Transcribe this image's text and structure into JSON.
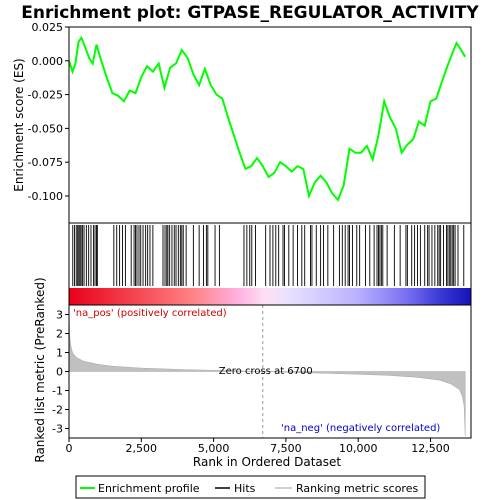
{
  "chart_data": {
    "type": "line",
    "title": "Enrichment plot: GTPASE_REGULATOR_ACTIVITY",
    "top_panel": {
      "ylabel": "Enrichment score (ES)",
      "ylim": [
        -0.12,
        0.025
      ],
      "yticks": [
        0.025,
        0.0,
        -0.025,
        -0.05,
        -0.075,
        -0.1
      ],
      "ytick_labels": [
        "0.025",
        "0.000",
        "-0.025",
        "-0.050",
        "-0.075",
        "-0.100"
      ],
      "series_name": "Enrichment profile",
      "color": "#00ff00",
      "profile": [
        [
          0,
          0.0
        ],
        [
          120,
          -0.008
        ],
        [
          220,
          -0.002
        ],
        [
          330,
          0.014
        ],
        [
          430,
          0.017
        ],
        [
          560,
          0.01
        ],
        [
          700,
          0.002
        ],
        [
          820,
          -0.002
        ],
        [
          950,
          0.012
        ],
        [
          1100,
          0.001
        ],
        [
          1300,
          -0.012
        ],
        [
          1500,
          -0.024
        ],
        [
          1700,
          -0.026
        ],
        [
          1900,
          -0.03
        ],
        [
          2100,
          -0.022
        ],
        [
          2300,
          -0.024
        ],
        [
          2500,
          -0.012
        ],
        [
          2700,
          -0.004
        ],
        [
          2900,
          -0.008
        ],
        [
          3100,
          -0.002
        ],
        [
          3300,
          -0.02
        ],
        [
          3500,
          -0.005
        ],
        [
          3700,
          -0.002
        ],
        [
          3900,
          0.008
        ],
        [
          4100,
          0.002
        ],
        [
          4300,
          -0.01
        ],
        [
          4500,
          -0.018
        ],
        [
          4700,
          -0.006
        ],
        [
          4900,
          -0.018
        ],
        [
          5100,
          -0.025
        ],
        [
          5300,
          -0.028
        ],
        [
          5500,
          -0.042
        ],
        [
          5700,
          -0.055
        ],
        [
          5900,
          -0.068
        ],
        [
          6100,
          -0.08
        ],
        [
          6300,
          -0.078
        ],
        [
          6500,
          -0.072
        ],
        [
          6700,
          -0.078
        ],
        [
          6900,
          -0.086
        ],
        [
          7100,
          -0.083
        ],
        [
          7300,
          -0.075
        ],
        [
          7500,
          -0.078
        ],
        [
          7700,
          -0.082
        ],
        [
          7900,
          -0.078
        ],
        [
          8100,
          -0.08
        ],
        [
          8300,
          -0.1
        ],
        [
          8500,
          -0.09
        ],
        [
          8700,
          -0.085
        ],
        [
          8900,
          -0.09
        ],
        [
          9100,
          -0.098
        ],
        [
          9300,
          -0.103
        ],
        [
          9500,
          -0.092
        ],
        [
          9700,
          -0.065
        ],
        [
          9900,
          -0.068
        ],
        [
          10100,
          -0.068
        ],
        [
          10300,
          -0.063
        ],
        [
          10500,
          -0.073
        ],
        [
          10700,
          -0.055
        ],
        [
          10900,
          -0.03
        ],
        [
          11100,
          -0.042
        ],
        [
          11300,
          -0.05
        ],
        [
          11500,
          -0.068
        ],
        [
          11700,
          -0.062
        ],
        [
          11900,
          -0.058
        ],
        [
          12100,
          -0.045
        ],
        [
          12300,
          -0.048
        ],
        [
          12500,
          -0.03
        ],
        [
          12700,
          -0.028
        ],
        [
          12900,
          -0.015
        ],
        [
          13100,
          -0.003
        ],
        [
          13300,
          0.008
        ],
        [
          13400,
          0.013
        ],
        [
          13500,
          0.01
        ],
        [
          13700,
          0.003
        ]
      ]
    },
    "hits_panel": {
      "series_name": "Hits",
      "hit_positions": [
        130,
        190,
        250,
        300,
        340,
        380,
        420,
        470,
        520,
        600,
        680,
        760,
        850,
        900,
        950,
        980,
        1550,
        1650,
        1750,
        1850,
        1950,
        2150,
        2250,
        2300,
        2350,
        2420,
        2480,
        2560,
        2650,
        2720,
        2800,
        2900,
        3250,
        3320,
        3380,
        3420,
        3480,
        3560,
        3640,
        3700,
        3780,
        3850,
        3900,
        3950,
        4050,
        4300,
        4500,
        4650,
        4750,
        4800,
        5050,
        5200,
        6050,
        6150,
        6250,
        6320,
        6450,
        6800,
        6950,
        7050,
        7150,
        7250,
        7400,
        7450,
        7600,
        7750,
        7900,
        8050,
        8150,
        8350,
        8400,
        8550,
        8700,
        8800,
        8950,
        9150,
        9350,
        9450,
        9550,
        9650,
        9700,
        9800,
        9950,
        10050,
        10250,
        10400,
        10550,
        10650,
        10700,
        10750,
        10800,
        10850,
        11000,
        11250,
        11450,
        11650,
        11700,
        11850,
        11950,
        12050,
        12150,
        12300,
        12400,
        12450,
        12550,
        12650,
        12750,
        12800,
        12850,
        12950,
        13050,
        13100,
        13150,
        13200,
        13250,
        13300,
        13350,
        13450,
        13650
      ],
      "gradient_left_color": "#ff0000",
      "gradient_mid_color": "#ffffff",
      "gradient_right_color": "#0000ff"
    },
    "bottom_panel": {
      "ylabel": "Ranked list metric (PreRanked)",
      "xlabel": "Rank in Ordered Dataset",
      "ylim": [
        -3.5,
        3.5
      ],
      "yticks": [
        3,
        2,
        1,
        0,
        -1,
        -2,
        -3
      ],
      "ytick_labels": [
        "3",
        "2",
        "1",
        "0",
        "-1",
        "-2",
        "-3"
      ],
      "series_name": "Ranking metric scores",
      "fill_color": "#c0c0c0",
      "metric_curve": [
        [
          0,
          3.2
        ],
        [
          20,
          2.0
        ],
        [
          60,
          1.4
        ],
        [
          120,
          1.0
        ],
        [
          250,
          0.75
        ],
        [
          500,
          0.55
        ],
        [
          1000,
          0.38
        ],
        [
          1500,
          0.28
        ],
        [
          2500,
          0.18
        ],
        [
          4000,
          0.1
        ],
        [
          5500,
          0.04
        ],
        [
          6700,
          0.0
        ],
        [
          8000,
          -0.06
        ],
        [
          9500,
          -0.12
        ],
        [
          11000,
          -0.2
        ],
        [
          12000,
          -0.3
        ],
        [
          12800,
          -0.45
        ],
        [
          13200,
          -0.65
        ],
        [
          13500,
          -0.95
        ],
        [
          13600,
          -1.3
        ],
        [
          13660,
          -1.8
        ],
        [
          13700,
          -3.4
        ]
      ],
      "zero_cross_label": "Zero cross at 6700",
      "zero_cross_rank": 6700,
      "pos_label": "'na_pos' (positively correlated)",
      "neg_label": "'na_neg' (negatively correlated)",
      "pos_color": "#cc0000",
      "neg_color": "#0000cc"
    },
    "xlim": [
      0,
      13900
    ],
    "xticks": [
      0,
      2500,
      5000,
      7500,
      10000,
      12500
    ],
    "xtick_labels": [
      "0",
      "2,500",
      "5,000",
      "7,500",
      "10,000",
      "12,500"
    ],
    "legend": {
      "placement": "bottom",
      "entries": [
        {
          "label": "Enrichment profile",
          "color": "#00ff00"
        },
        {
          "label": "Hits",
          "color": "#000000"
        },
        {
          "label": "Ranking metric scores",
          "color": "#c0c0c0"
        }
      ]
    }
  }
}
